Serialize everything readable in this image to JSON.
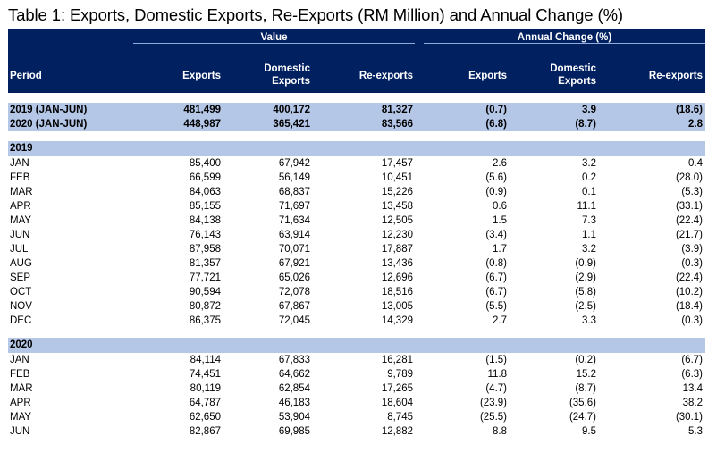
{
  "title": "Table 1: Exports, Domestic Exports, Re-Exports (RM Million) and Annual Change (%)",
  "groups": {
    "value": "Value",
    "change": "Annual Change (%)"
  },
  "columns": {
    "period": "Period",
    "c1": "Exports",
    "c2_1": "Domestic",
    "c2_2": "Exports",
    "c3": "Re-exports",
    "c4": "Exports",
    "c5_1": "Domestic",
    "c5_2": "Exports",
    "c6": "Re-exports"
  },
  "summary": [
    [
      "2019 (JAN-JUN)",
      "481,499",
      "400,172",
      "81,327",
      "(0.7)",
      "3.9",
      "(18.6)"
    ],
    [
      "2020 (JAN-JUN)",
      "448,987",
      "365,421",
      "83,566",
      "(6.8)",
      "(8.7)",
      "2.8"
    ]
  ],
  "sections": [
    {
      "label": "2019",
      "rows": [
        [
          "JAN",
          "85,400",
          "67,942",
          "17,457",
          "2.6",
          "3.2",
          "0.4"
        ],
        [
          "FEB",
          "66,599",
          "56,149",
          "10,451",
          "(5.6)",
          "0.2",
          "(28.0)"
        ],
        [
          "MAR",
          "84,063",
          "68,837",
          "15,226",
          "(0.9)",
          "0.1",
          "(5.3)"
        ],
        [
          "APR",
          "85,155",
          "71,697",
          "13,458",
          "0.6",
          "11.1",
          "(33.1)"
        ],
        [
          "MAY",
          "84,138",
          "71,634",
          "12,505",
          "1.5",
          "7.3",
          "(22.4)"
        ],
        [
          "JUN",
          "76,143",
          "63,914",
          "12,230",
          "(3.4)",
          "1.1",
          "(21.7)"
        ],
        [
          "JUL",
          "87,958",
          "70,071",
          "17,887",
          "1.7",
          "3.2",
          "(3.9)"
        ],
        [
          "AUG",
          "81,357",
          "67,921",
          "13,436",
          "(0.8)",
          "(0.9)",
          "(0.3)"
        ],
        [
          "SEP",
          "77,721",
          "65,026",
          "12,696",
          "(6.7)",
          "(2.9)",
          "(22.4)"
        ],
        [
          "OCT",
          "90,594",
          "72,078",
          "18,516",
          "(6.7)",
          "(5.8)",
          "(10.2)"
        ],
        [
          "NOV",
          "80,872",
          "67,867",
          "13,005",
          "(5.5)",
          "(2.5)",
          "(18.4)"
        ],
        [
          "DEC",
          "86,375",
          "72,045",
          "14,329",
          "2.7",
          "3.3",
          "(0.3)"
        ]
      ]
    },
    {
      "label": "2020",
      "rows": [
        [
          "JAN",
          "84,114",
          "67,833",
          "16,281",
          "(1.5)",
          "(0.2)",
          "(6.7)"
        ],
        [
          "FEB",
          "74,451",
          "64,662",
          "9,789",
          "11.8",
          "15.2",
          "(6.3)"
        ],
        [
          "MAR",
          "80,119",
          "62,854",
          "17,265",
          "(4.7)",
          "(8.7)",
          "13.4"
        ],
        [
          "APR",
          "64,787",
          "46,183",
          "18,604",
          "(23.9)",
          "(35.6)",
          "38.2"
        ],
        [
          "MAY",
          "62,650",
          "53,904",
          "8,745",
          "(25.5)",
          "(24.7)",
          "(30.1)"
        ],
        [
          "JUN",
          "82,867",
          "69,985",
          "12,882",
          "8.8",
          "9.5",
          "5.3"
        ]
      ]
    }
  ]
}
